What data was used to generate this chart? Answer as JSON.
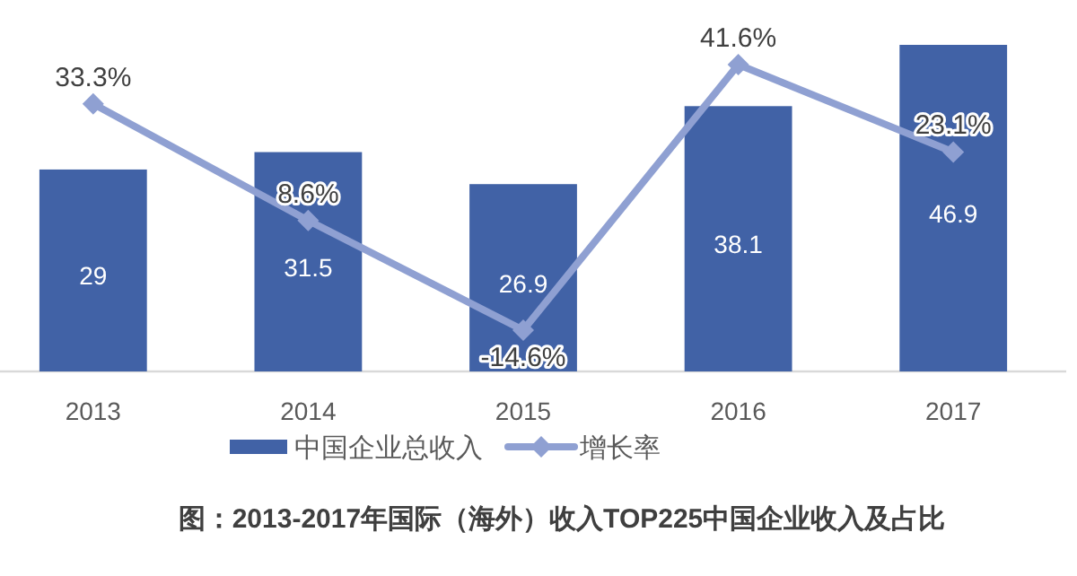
{
  "chart_data": {
    "type": "bar",
    "title": "图：2013-2017年国际（海外）收入TOP225中国企业收入及占比",
    "categories": [
      "2013",
      "2014",
      "2015",
      "2016",
      "2017"
    ],
    "series": [
      {
        "name": "中国企业总收入",
        "color": "#4162a6",
        "values": [
          29,
          31.5,
          26.9,
          38.1,
          46.9
        ],
        "value_labels": [
          "29",
          "31.5",
          "26.9",
          "38.1",
          "46.9"
        ]
      },
      {
        "name": "增长率",
        "type": "line",
        "axis": "y2",
        "color": "#8fa0d2",
        "marker": "diamond",
        "values": [
          33.3,
          8.6,
          -14.6,
          41.6,
          23.1
        ],
        "value_labels": [
          "33.3%",
          "8.6%",
          "-14.6%",
          "41.6%",
          "23.1%"
        ]
      }
    ],
    "legend": "bottom",
    "tick_labels": "x"
  }
}
